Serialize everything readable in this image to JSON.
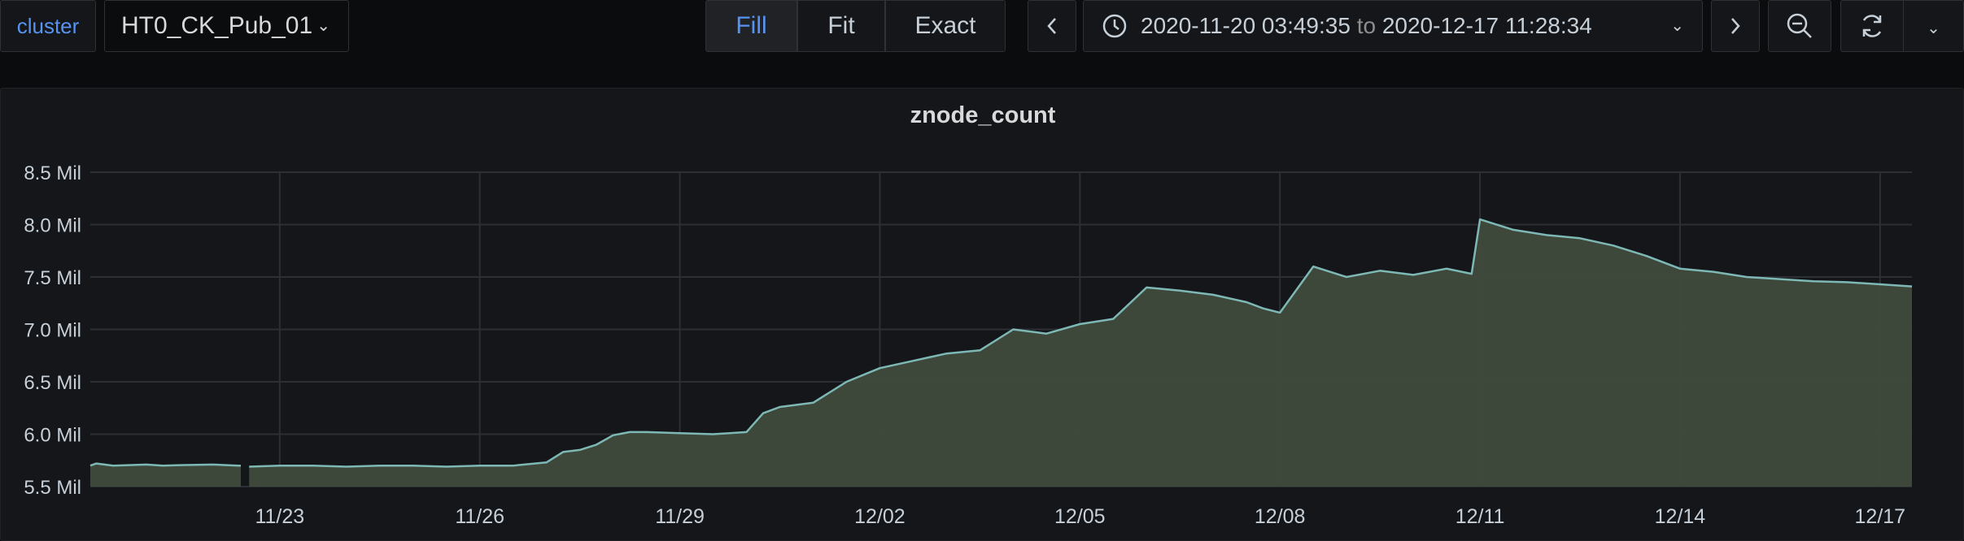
{
  "toolbar": {
    "cluster_label": "cluster",
    "cluster_value": "HT0_CK_Pub_01",
    "view_modes": [
      "Fill",
      "Fit",
      "Exact"
    ],
    "active_mode": "Fill",
    "time_from": "2020-11-20 03:49:35",
    "time_sep": "to",
    "time_to": "2020-12-17 11:28:34",
    "icons": {
      "prev": "chevron-left-icon",
      "next": "chevron-right-icon",
      "clock": "clock-icon",
      "zoom_out": "zoom-out-icon",
      "refresh": "refresh-icon",
      "dropdown": "chevron-down-icon"
    }
  },
  "chart_data": {
    "type": "area",
    "title": "znode_count",
    "xlabel": "",
    "ylabel": "",
    "x_range": [
      "2020-11-20 03:49:35",
      "2020-12-17 11:28:34"
    ],
    "x_ticks": [
      "11/23",
      "11/26",
      "11/29",
      "12/02",
      "12/05",
      "12/08",
      "12/11",
      "12/14",
      "12/17"
    ],
    "x_tick_dates": [
      "2020-11-23",
      "2020-11-26",
      "2020-11-29",
      "2020-12-02",
      "2020-12-05",
      "2020-12-08",
      "2020-12-11",
      "2020-12-14",
      "2020-12-17"
    ],
    "y_ticks": [
      "8.5 Mil",
      "8.0 Mil",
      "7.5 Mil",
      "7.0 Mil",
      "6.5 Mil",
      "6.0 Mil",
      "5.5 Mil"
    ],
    "ylim": [
      5500000,
      8500000
    ],
    "grid": true,
    "legend": "none",
    "line_color": "#7eb8b5",
    "fill_color": "#3f4a3c",
    "gaps": [
      [
        "2020-11-22 10:00",
        "2020-11-22 13:00"
      ]
    ],
    "series": [
      {
        "x": [
          "2020-11-20 03:49",
          "2020-11-20 06:00",
          "2020-11-20 12:00",
          "2020-11-21 00:00",
          "2020-11-21 06:00",
          "2020-11-21 12:00",
          "2020-11-22 00:00",
          "2020-11-22 09:00",
          "2020-11-22 10:00",
          "2020-11-22 13:00",
          "2020-11-23 00:00",
          "2020-11-23 12:00",
          "2020-11-24 00:00",
          "2020-11-24 12:00",
          "2020-11-25 00:00",
          "2020-11-25 12:00",
          "2020-11-26 00:00",
          "2020-11-26 12:00",
          "2020-11-27 00:00",
          "2020-11-27 06:00",
          "2020-11-27 12:00",
          "2020-11-27 18:00",
          "2020-11-28 00:00",
          "2020-11-28 06:00",
          "2020-11-28 12:00",
          "2020-11-29 00:00",
          "2020-11-29 12:00",
          "2020-11-30 00:00",
          "2020-11-30 06:00",
          "2020-11-30 12:00",
          "2020-12-01 00:00",
          "2020-12-01 12:00",
          "2020-12-02 00:00",
          "2020-12-02 12:00",
          "2020-12-03 00:00",
          "2020-12-03 12:00",
          "2020-12-04 00:00",
          "2020-12-04 12:00",
          "2020-12-05 00:00",
          "2020-12-05 12:00",
          "2020-12-06 00:00",
          "2020-12-06 12:00",
          "2020-12-07 00:00",
          "2020-12-07 12:00",
          "2020-12-07 18:00",
          "2020-12-08 00:00",
          "2020-12-08 12:00",
          "2020-12-09 00:00",
          "2020-12-09 12:00",
          "2020-12-10 00:00",
          "2020-12-10 12:00",
          "2020-12-10 21:00",
          "2020-12-11 00:00",
          "2020-12-11 12:00",
          "2020-12-12 00:00",
          "2020-12-12 12:00",
          "2020-12-13 00:00",
          "2020-12-13 12:00",
          "2020-12-14 00:00",
          "2020-12-14 12:00",
          "2020-12-15 00:00",
          "2020-12-15 12:00",
          "2020-12-16 00:00",
          "2020-12-16 12:00",
          "2020-12-17 00:00",
          "2020-12-17 11:28"
        ],
        "y": [
          5700000,
          5720000,
          5700000,
          5710000,
          5700000,
          5705000,
          5710000,
          5700000,
          5700000,
          5690000,
          5700000,
          5700000,
          5690000,
          5700000,
          5700000,
          5690000,
          5700000,
          5700000,
          5730000,
          5830000,
          5850000,
          5900000,
          5990000,
          6020000,
          6020000,
          6010000,
          6000000,
          6020000,
          6200000,
          6260000,
          6300000,
          6500000,
          6630000,
          6700000,
          6770000,
          6800000,
          7000000,
          6960000,
          7050000,
          7100000,
          7400000,
          7370000,
          7330000,
          7260000,
          7200000,
          7160000,
          7600000,
          7500000,
          7560000,
          7520000,
          7580000,
          7530000,
          8050000,
          7950000,
          7900000,
          7870000,
          7800000,
          7700000,
          7580000,
          7550000,
          7500000,
          7480000,
          7460000,
          7450000,
          7430000,
          7410000
        ]
      }
    ]
  }
}
